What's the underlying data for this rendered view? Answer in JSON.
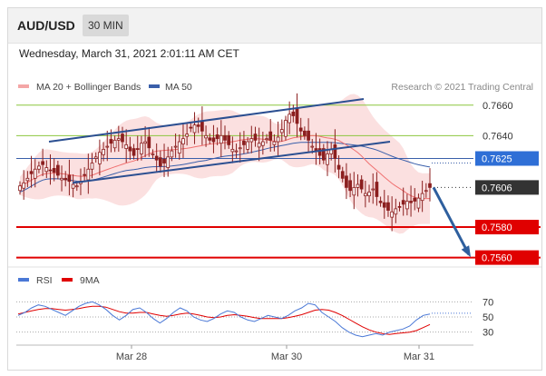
{
  "header": {
    "pair": "AUD/USD",
    "timeframe": "30 MIN"
  },
  "timestamp": "Wednesday, March 31, 2021 2:01:11 AM CET",
  "legend": {
    "ma20_label": "MA 20 + Bollinger Bands",
    "ma50_label": "MA 50",
    "credit": "Research © 2021 Trading Central"
  },
  "rsi_legend": {
    "rsi_label": "RSI",
    "ma9_label": "9MA"
  },
  "colors": {
    "candle": "#8b1f1f",
    "bollinger": "#f4a6a6",
    "ma20": "#f07070",
    "ma50": "#3a5faa",
    "channel": "#2b4f91",
    "green": "#8cc63f",
    "red": "#e00000",
    "dark_label": "#333333",
    "forecast_arrow": "#2e5f9e"
  },
  "chart_data": [
    {
      "type": "candlestick",
      "instrument": "AUD/USD",
      "timeframe": "30 MIN",
      "x_ticks": [
        "Mar 28",
        "Mar 30",
        "Mar 31"
      ],
      "ylim": [
        0.7555,
        0.7667
      ],
      "levels": [
        {
          "value": 0.766,
          "label": "0.7660",
          "style": "green"
        },
        {
          "value": 0.764,
          "label": "0.7640",
          "style": "green"
        },
        {
          "value": 0.7625,
          "label": "0.7625",
          "style": "blue"
        },
        {
          "value": 0.7606,
          "label": "0.7606",
          "style": "current"
        },
        {
          "value": 0.758,
          "label": "0.7580",
          "style": "red"
        },
        {
          "value": 0.756,
          "label": "0.7560",
          "style": "red"
        }
      ],
      "close": [
        0.7607,
        0.7609,
        0.7612,
        0.7615,
        0.7618,
        0.762,
        0.7621,
        0.7619,
        0.7617,
        0.7616,
        0.7614,
        0.7612,
        0.7611,
        0.761,
        0.7608,
        0.7607,
        0.761,
        0.7614,
        0.7618,
        0.7622,
        0.7626,
        0.7629,
        0.7631,
        0.7633,
        0.7635,
        0.7637,
        0.7638,
        0.7636,
        0.7634,
        0.763,
        0.7627,
        0.7631,
        0.7635,
        0.7636,
        0.7632,
        0.7628,
        0.7624,
        0.762,
        0.7622,
        0.7626,
        0.763,
        0.7633,
        0.7636,
        0.7638,
        0.7641,
        0.7645,
        0.7647,
        0.7646,
        0.7643,
        0.764,
        0.7637,
        0.7636,
        0.7638,
        0.764,
        0.7637,
        0.7634,
        0.7631,
        0.763,
        0.7632,
        0.7634,
        0.7636,
        0.7638,
        0.7637,
        0.7635,
        0.7636,
        0.7638,
        0.7637,
        0.7636,
        0.7639,
        0.7644,
        0.765,
        0.7654,
        0.7653,
        0.7648,
        0.7643,
        0.764,
        0.7637,
        0.7633,
        0.763,
        0.7627,
        0.7624,
        0.7628,
        0.7631,
        0.7625,
        0.7618,
        0.7612,
        0.7606,
        0.7604,
        0.7606,
        0.7608,
        0.7605,
        0.7602,
        0.7603,
        0.7605,
        0.76,
        0.7596,
        0.7593,
        0.7591,
        0.759,
        0.7592,
        0.7593,
        0.7595,
        0.7597,
        0.7596,
        0.7597,
        0.7599,
        0.7602,
        0.7604,
        0.7606
      ],
      "rsi": {
        "levels": [
          70,
          50,
          30
        ],
        "rsi_values": [
          52,
          56,
          62,
          66,
          64,
          60,
          56,
          52,
          58,
          64,
          68,
          70,
          66,
          60,
          52,
          46,
          52,
          60,
          62,
          56,
          48,
          42,
          48,
          56,
          62,
          58,
          50,
          46,
          44,
          48,
          54,
          58,
          56,
          50,
          46,
          44,
          48,
          52,
          50,
          48,
          52,
          58,
          62,
          68,
          66,
          56,
          50,
          44,
          36,
          30,
          26,
          24,
          26,
          28,
          26,
          30,
          32,
          34,
          38,
          46,
          52,
          54
        ],
        "ma9_values": [
          54,
          56,
          58,
          60,
          61,
          61,
          60,
          59,
          60,
          61,
          63,
          64,
          64,
          63,
          60,
          57,
          55,
          55,
          56,
          56,
          54,
          52,
          51,
          52,
          54,
          55,
          54,
          52,
          50,
          49,
          50,
          52,
          53,
          52,
          51,
          49,
          48,
          48,
          48,
          48,
          49,
          51,
          53,
          56,
          59,
          60,
          59,
          56,
          52,
          47,
          42,
          37,
          33,
          30,
          28,
          27,
          28,
          29,
          30,
          32,
          36,
          40
        ]
      }
    }
  ]
}
